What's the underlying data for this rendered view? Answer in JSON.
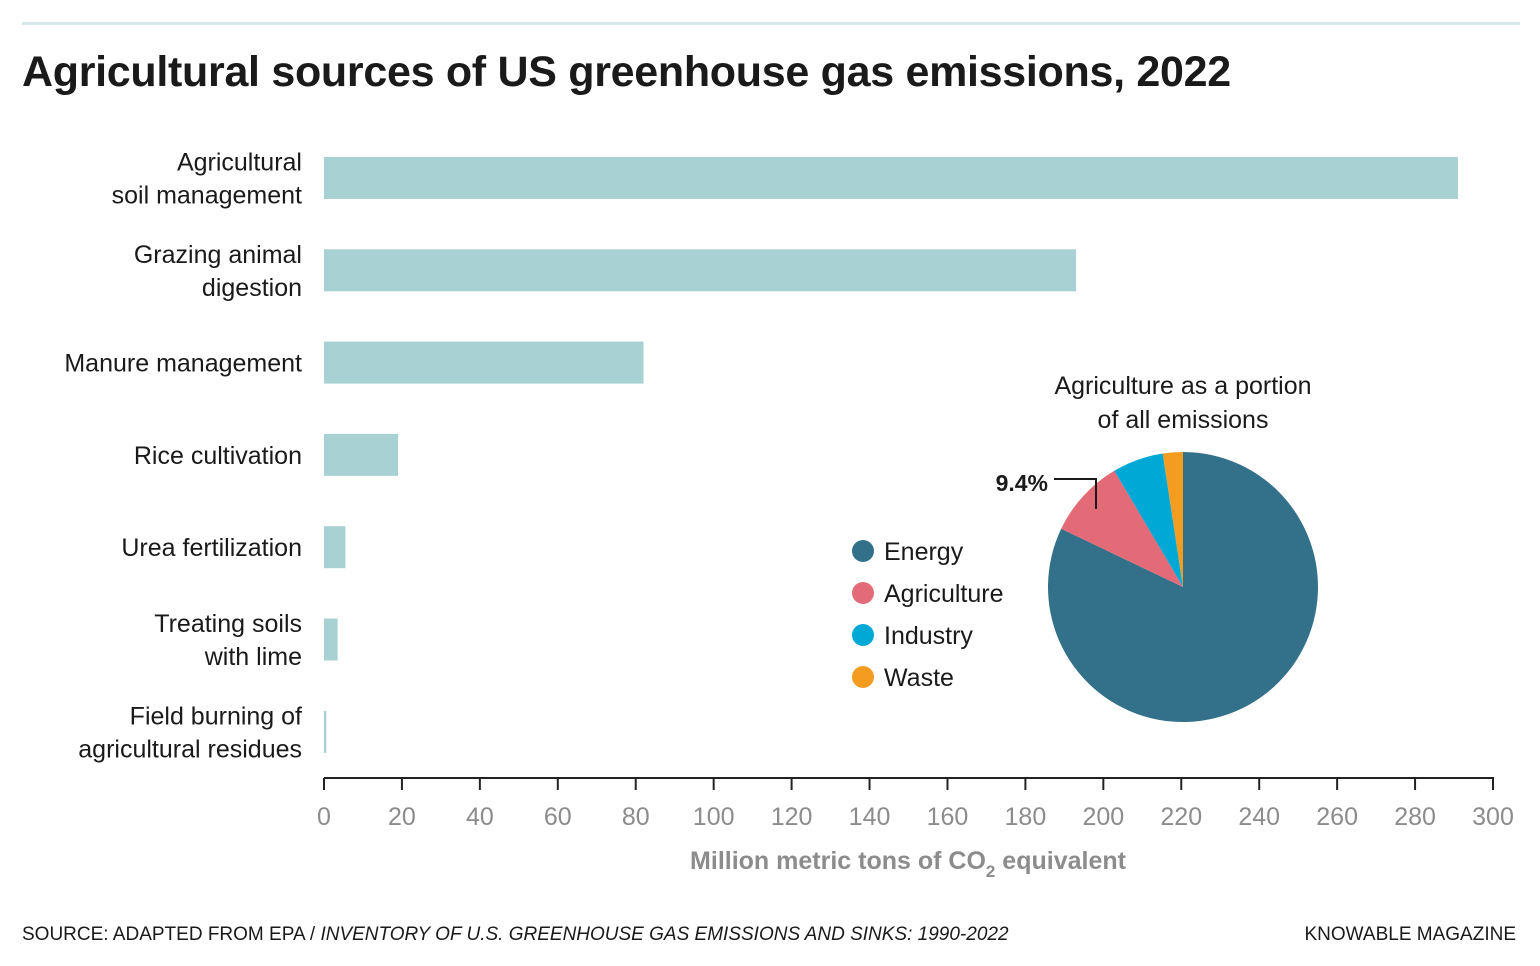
{
  "title": "Agricultural sources of US greenhouse gas emissions, 2022",
  "colors": {
    "bar": "#a8d1d3",
    "axis": "#222222",
    "energy": "#337089",
    "agriculture": "#e36a77",
    "industry": "#00a8d6",
    "waste": "#f39c1f"
  },
  "chart_data": [
    {
      "type": "bar",
      "orientation": "horizontal",
      "categories": [
        [
          "Agricultural",
          "soil management"
        ],
        [
          "Grazing animal",
          "digestion"
        ],
        [
          "Manure management"
        ],
        [
          "Rice cultivation"
        ],
        [
          "Urea fertilization"
        ],
        [
          "Treating soils",
          "with lime"
        ],
        [
          "Field burning of",
          "agricultural residues"
        ]
      ],
      "values": [
        291,
        193,
        82,
        19,
        5.5,
        3.5,
        0.6
      ],
      "xlim": [
        0,
        300
      ],
      "xticks": [
        0,
        20,
        40,
        60,
        80,
        100,
        120,
        140,
        160,
        180,
        200,
        220,
        240,
        260,
        280,
        300
      ],
      "xlabel_main": "Million metric tons of CO",
      "xlabel_sub": "2",
      "xlabel_tail": " equivalent",
      "grid": false
    },
    {
      "type": "pie",
      "title": [
        "Agriculture as a portion",
        "of all emissions"
      ],
      "labels": [
        "Energy",
        "Agriculture",
        "Industry",
        "Waste"
      ],
      "values": [
        82.1,
        9.4,
        6.1,
        2.4
      ],
      "annotation": "9.4%",
      "legend_position": "left"
    }
  ],
  "footer": {
    "source_label": "SOURCE: ADAPTED FROM EPA / ",
    "source_title": "INVENTORY OF U.S. GREENHOUSE GAS EMISSIONS AND SINKS: 1990-2022",
    "brand": "KNOWABLE MAGAZINE"
  }
}
